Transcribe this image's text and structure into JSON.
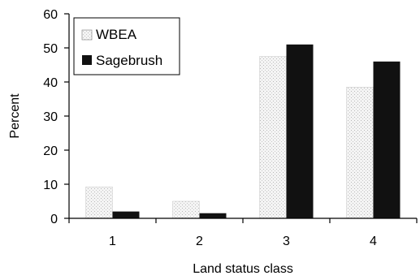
{
  "chart_data": {
    "type": "bar",
    "categories": [
      "1",
      "2",
      "3",
      "4"
    ],
    "series": [
      {
        "name": "WBEA",
        "values": [
          9.2,
          5.0,
          47.5,
          38.5
        ],
        "pattern": "light-stipple"
      },
      {
        "name": "Sagebrush",
        "values": [
          2.0,
          1.5,
          51.0,
          46.0
        ],
        "color": "#111111"
      }
    ],
    "xlabel": "Land status class",
    "ylabel": "Percent",
    "ylim": [
      0,
      60
    ],
    "yticks": [
      0,
      10,
      20,
      30,
      40,
      50,
      60
    ],
    "grid": false,
    "legend_position": "top-left"
  }
}
